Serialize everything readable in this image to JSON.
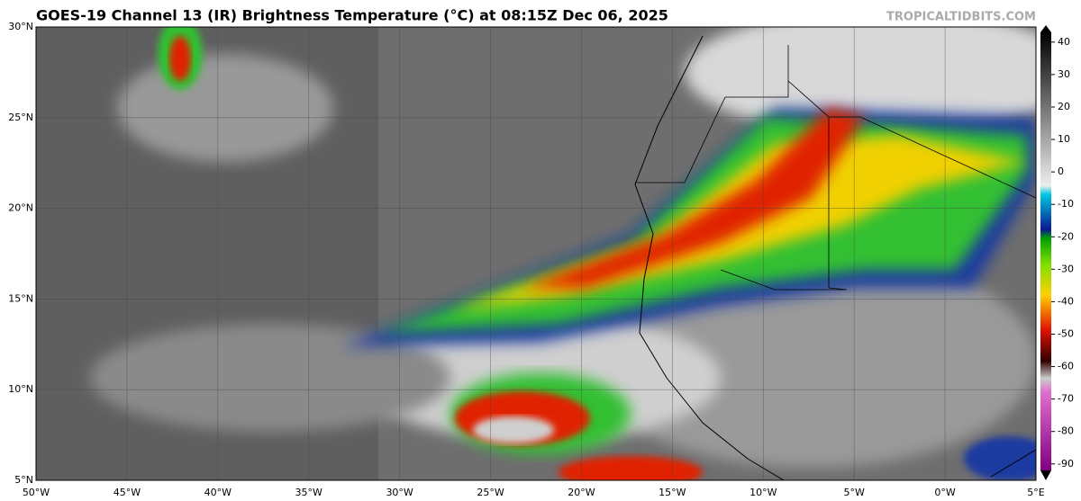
{
  "header": {
    "title": "GOES-19 Channel 13 (IR) Brightness Temperature (°C) at 08:15Z Dec 06, 2025",
    "credit": "TROPICALTIDBITS.COM"
  },
  "map": {
    "lonlim": [
      -50,
      5
    ],
    "latlim": [
      5,
      30
    ],
    "lon_ticks": [
      {
        "value": -50,
        "label": "50°W"
      },
      {
        "value": -45,
        "label": "45°W"
      },
      {
        "value": -40,
        "label": "40°W"
      },
      {
        "value": -35,
        "label": "35°W"
      },
      {
        "value": -30,
        "label": "30°W"
      },
      {
        "value": -25,
        "label": "25°W"
      },
      {
        "value": -20,
        "label": "20°W"
      },
      {
        "value": -15,
        "label": "15°W"
      },
      {
        "value": -10,
        "label": "10°W"
      },
      {
        "value": -5,
        "label": "5°W"
      },
      {
        "value": 0,
        "label": "0°W"
      },
      {
        "value": 5,
        "label": "5°E"
      }
    ],
    "lat_ticks": [
      {
        "value": 30,
        "label": "30°N"
      },
      {
        "value": 25,
        "label": "25°N"
      },
      {
        "value": 20,
        "label": "20°N"
      },
      {
        "value": 15,
        "label": "15°N"
      },
      {
        "value": 10,
        "label": "10°N"
      },
      {
        "value": 5,
        "label": "5°N"
      }
    ]
  },
  "colorbar": {
    "lim": [
      -92,
      43
    ],
    "ticks": [
      40,
      30,
      20,
      10,
      0,
      -10,
      -20,
      -30,
      -40,
      -50,
      -60,
      -70,
      -80,
      -90
    ]
  }
}
